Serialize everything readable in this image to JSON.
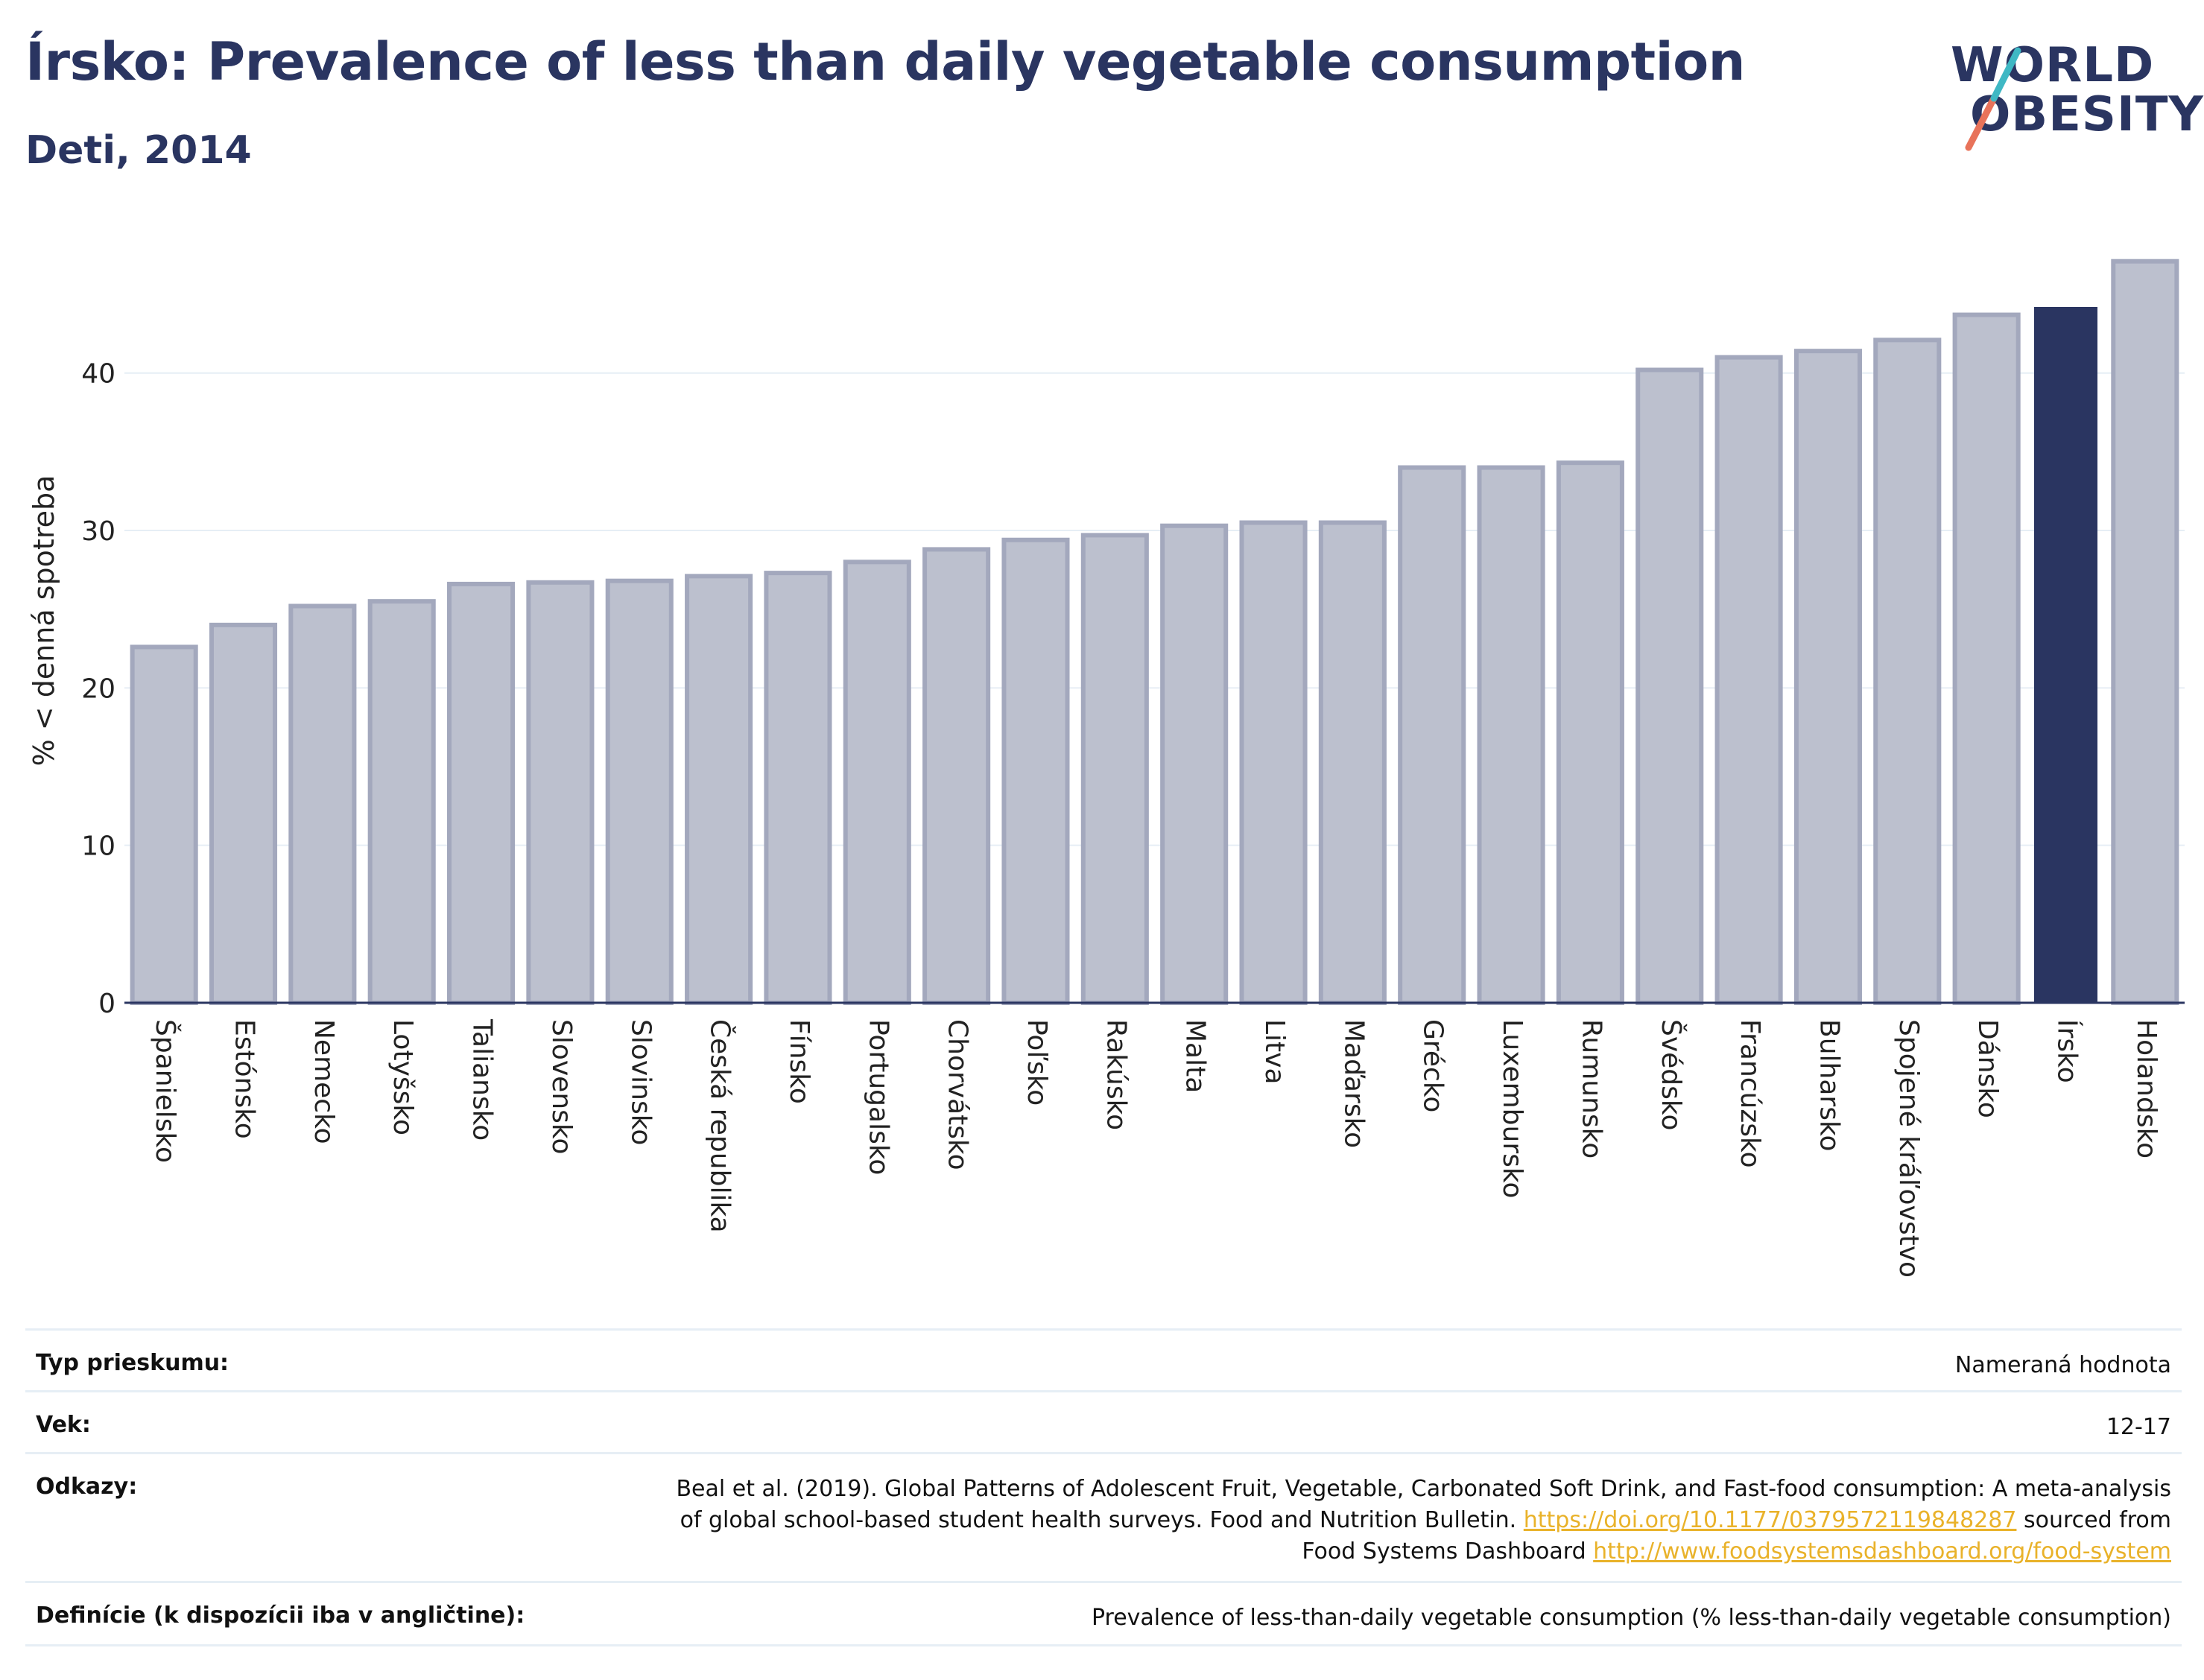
{
  "header": {
    "title": "Írsko: Prevalence of less than daily vegetable consumption",
    "subtitle": "Deti, 2014",
    "logo_line1": "WORLD",
    "logo_line2": "OBESITY"
  },
  "colors": {
    "bar": "#bcc0ce",
    "bar_stroke": "#a3a8bd",
    "highlight": "#2a3561",
    "grid": "#e6eef5",
    "text": "#2a3561",
    "link": "#e9b22a",
    "logo_teal": "#3fb8c4",
    "logo_coral": "#e8735a"
  },
  "chart_data": {
    "type": "bar",
    "ylabel": "% < denná spotreba",
    "xlabel": "",
    "ylim": [
      0,
      49.5
    ],
    "yticks": [
      0,
      10,
      20,
      30,
      40
    ],
    "grid": true,
    "highlight": "Írsko",
    "categories": [
      "Španielsko",
      "Estónsko",
      "Nemecko",
      "Lotyšsko",
      "Taliansko",
      "Slovensko",
      "Slovinsko",
      "Česká republika",
      "Fínsko",
      "Portugalsko",
      "Chorvátsko",
      "Poľsko",
      "Rakúsko",
      "Malta",
      "Litva",
      "Maďarsko",
      "Grécko",
      "Luxembursko",
      "Rumunsko",
      "Švédsko",
      "Francúzsko",
      "Bulharsko",
      "Spojené kráľovstvo",
      "Dánsko",
      "Írsko",
      "Holandsko"
    ],
    "values": [
      22.6,
      24.0,
      25.2,
      25.5,
      26.6,
      26.7,
      26.8,
      27.1,
      27.3,
      28.0,
      28.8,
      29.4,
      29.7,
      30.3,
      30.5,
      30.5,
      34.0,
      34.0,
      34.3,
      40.2,
      41.0,
      41.4,
      42.1,
      43.7,
      44.2,
      47.1
    ]
  },
  "info": {
    "survey_type_label": "Typ prieskumu:",
    "survey_type_value": "Nameraná hodnota",
    "age_label": "Vek:",
    "age_value": "12-17",
    "refs_label": "Odkazy:",
    "refs_line1": "Beal et al. (2019). Global Patterns of Adolescent Fruit, Vegetable, Carbonated Soft Drink, and Fast-food consumption: A meta-analysis",
    "refs_line2_pre": "of global school-based student health surveys. Food and Nutrition Bulletin. ",
    "refs_link1": "https://doi.org/10.1177/0379572119848287",
    "refs_line2_post": " sourced from",
    "refs_line3_pre": "Food Systems Dashboard ",
    "refs_link2": "http://www.foodsystemsdashboard.org/food-system",
    "definitions_label": "Definície (k dispozícii iba v angličtine):",
    "definitions_value": "Prevalence of less-than-daily vegetable consumption (% less-than-daily vegetable consumption)"
  }
}
